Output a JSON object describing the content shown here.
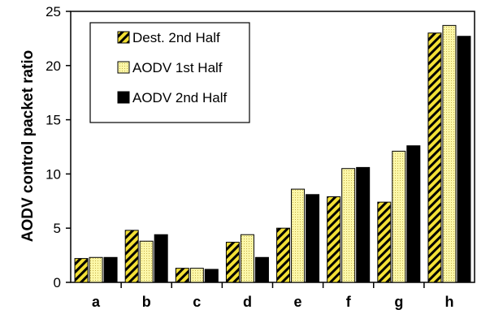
{
  "chart_data": {
    "type": "bar",
    "categories": [
      "a",
      "b",
      "c",
      "d",
      "e",
      "f",
      "g",
      "h"
    ],
    "series": [
      {
        "name": "Dest. 2nd Half",
        "values": [
          2.2,
          4.8,
          1.3,
          3.7,
          5.0,
          7.9,
          7.4,
          23.0
        ],
        "pattern": "diagonal-hatch",
        "color": "#f3e035"
      },
      {
        "name": "AODV 1st Half",
        "values": [
          2.3,
          3.8,
          1.3,
          4.4,
          8.6,
          10.5,
          12.1,
          23.7
        ],
        "pattern": "dotted",
        "color": "#fbf7a8"
      },
      {
        "name": "AODV 2nd Half",
        "values": [
          2.3,
          4.4,
          1.2,
          2.3,
          8.1,
          10.6,
          12.6,
          22.7
        ],
        "pattern": "solid",
        "color": "#000000"
      }
    ],
    "ylabel": "AODV control packet ratio",
    "xlabel": "",
    "ylim": [
      0,
      25
    ],
    "yticks": [
      0,
      5,
      10,
      15,
      20,
      25
    ],
    "grid": false,
    "legend_position": "top-left"
  }
}
